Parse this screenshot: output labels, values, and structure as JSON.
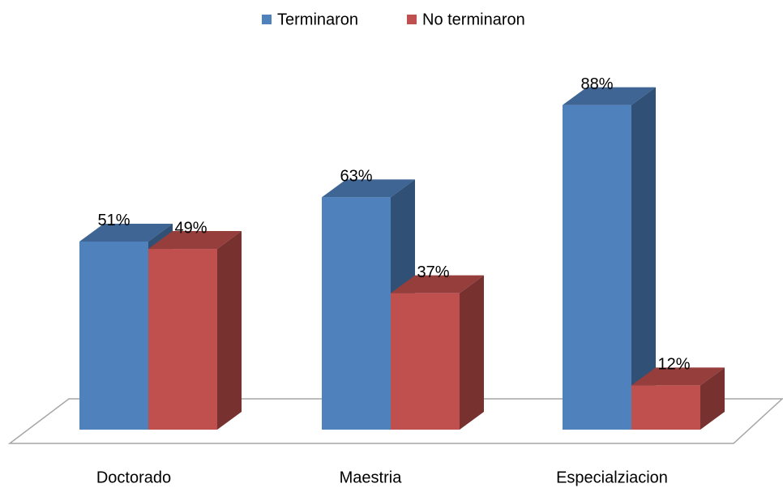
{
  "chart_data": {
    "type": "bar3d",
    "categories": [
      "Doctorado",
      "Maestria",
      "Especialziacion"
    ],
    "series": [
      {
        "name": "Terminaron",
        "color": "#4f81bd",
        "values": [
          51,
          63,
          88
        ],
        "value_labels": [
          "51%",
          "63%",
          "88%"
        ]
      },
      {
        "name": "No terminaron",
        "color": "#c0504d",
        "values": [
          49,
          37,
          12
        ],
        "value_labels": [
          "49%",
          "37%",
          "12%"
        ]
      }
    ],
    "legend": "top"
  }
}
